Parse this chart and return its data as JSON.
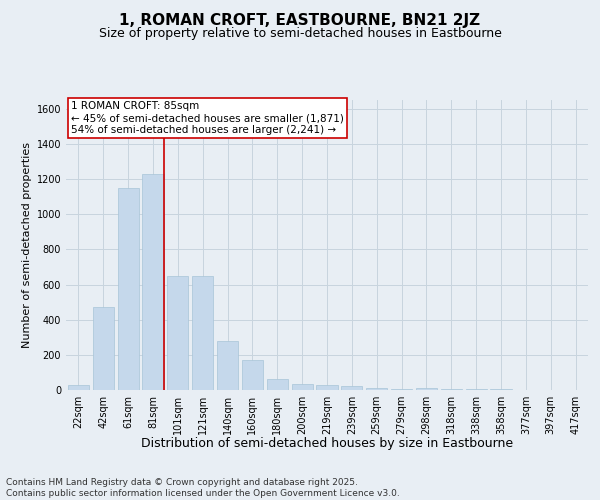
{
  "title": "1, ROMAN CROFT, EASTBOURNE, BN21 2JZ",
  "subtitle": "Size of property relative to semi-detached houses in Eastbourne",
  "xlabel": "Distribution of semi-detached houses by size in Eastbourne",
  "ylabel": "Number of semi-detached properties",
  "bar_labels": [
    "22sqm",
    "42sqm",
    "61sqm",
    "81sqm",
    "101sqm",
    "121sqm",
    "140sqm",
    "160sqm",
    "180sqm",
    "200sqm",
    "219sqm",
    "239sqm",
    "259sqm",
    "279sqm",
    "298sqm",
    "318sqm",
    "338sqm",
    "358sqm",
    "377sqm",
    "397sqm",
    "417sqm"
  ],
  "bar_values": [
    30,
    470,
    1150,
    1230,
    650,
    650,
    280,
    170,
    60,
    35,
    28,
    22,
    10,
    5,
    10,
    5,
    5,
    3,
    2,
    2,
    1
  ],
  "bar_color": "#c5d8eb",
  "bar_edge_color": "#a8c4d8",
  "grid_color": "#c8d4de",
  "background_color": "#e8eef4",
  "annotation_box_color": "#ffffff",
  "annotation_border_color": "#cc0000",
  "vline_color": "#cc0000",
  "vline_x_index": 3,
  "annotation_title": "1 ROMAN CROFT: 85sqm",
  "annotation_line1": "← 45% of semi-detached houses are smaller (1,871)",
  "annotation_line2": "54% of semi-detached houses are larger (2,241) →",
  "footer_line1": "Contains HM Land Registry data © Crown copyright and database right 2025.",
  "footer_line2": "Contains public sector information licensed under the Open Government Licence v3.0.",
  "ylim": [
    0,
    1650
  ],
  "yticks": [
    0,
    200,
    400,
    600,
    800,
    1000,
    1200,
    1400,
    1600
  ],
  "title_fontsize": 11,
  "subtitle_fontsize": 9,
  "xlabel_fontsize": 9,
  "ylabel_fontsize": 8,
  "tick_fontsize": 7,
  "annotation_fontsize": 7.5,
  "footer_fontsize": 6.5
}
